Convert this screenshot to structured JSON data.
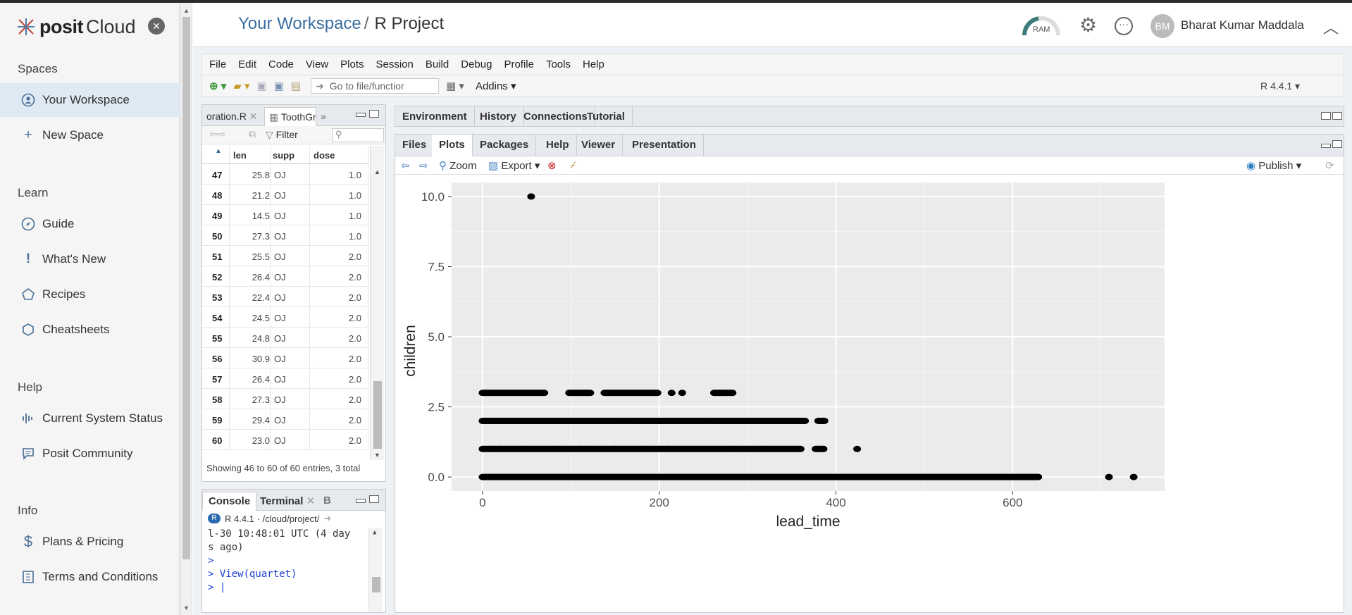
{
  "sidebar": {
    "logo_word1": "posit",
    "logo_word2": "Cloud",
    "close": "✕",
    "spaces_heading": "Spaces",
    "your_workspace": "Your Workspace",
    "new_space": "New Space",
    "learn_heading": "Learn",
    "guide": "Guide",
    "whats_new": "What's New",
    "recipes": "Recipes",
    "cheatsheets": "Cheatsheets",
    "help_heading": "Help",
    "system_status": "Current System Status",
    "community": "Posit Community",
    "info_heading": "Info",
    "plans": "Plans & Pricing",
    "terms": "Terms and Conditions"
  },
  "header": {
    "workspace": "Your Workspace",
    "separator": "/",
    "project": "R Project",
    "ram_label": "RAM",
    "avatar_initials": "BM",
    "user_name": "Bharat Kumar Maddala"
  },
  "menu": [
    "File",
    "Edit",
    "Code",
    "View",
    "Plots",
    "Session",
    "Build",
    "Debug",
    "Profile",
    "Tools",
    "Help"
  ],
  "toolbar": {
    "goto_placeholder": "Go to file/functior",
    "addins": "Addins",
    "r_version": "R 4.4.1"
  },
  "source": {
    "tab1": "oration.R",
    "tab2": "ToothGro",
    "filter": "Filter",
    "columns": [
      "len",
      "supp",
      "dose"
    ],
    "rows": [
      [
        "47",
        "25.8",
        "OJ",
        "1.0"
      ],
      [
        "48",
        "21.2",
        "OJ",
        "1.0"
      ],
      [
        "49",
        "14.5",
        "OJ",
        "1.0"
      ],
      [
        "50",
        "27.3",
        "OJ",
        "1.0"
      ],
      [
        "51",
        "25.5",
        "OJ",
        "2.0"
      ],
      [
        "52",
        "26.4",
        "OJ",
        "2.0"
      ],
      [
        "53",
        "22.4",
        "OJ",
        "2.0"
      ],
      [
        "54",
        "24.5",
        "OJ",
        "2.0"
      ],
      [
        "55",
        "24.8",
        "OJ",
        "2.0"
      ],
      [
        "56",
        "30.9",
        "OJ",
        "2.0"
      ],
      [
        "57",
        "26.4",
        "OJ",
        "2.0"
      ],
      [
        "58",
        "27.3",
        "OJ",
        "2.0"
      ],
      [
        "59",
        "29.4",
        "OJ",
        "2.0"
      ],
      [
        "60",
        "23.0",
        "OJ",
        "2.0"
      ]
    ],
    "entries": "Showing 46 to 60 of 60 entries, 3 total"
  },
  "console": {
    "tab_console": "Console",
    "tab_terminal": "Terminal",
    "tab_b": "B",
    "path": "R 4.4.1 · /cloud/project/",
    "line1": "l-30 10:48:01 UTC (4 day",
    "line2": "s ago)",
    "prompt": ">",
    "cmd": "> View(quartet)",
    "last": "> |"
  },
  "env_tabs": [
    "Environment",
    "History",
    "Connections",
    "Tutorial"
  ],
  "plot_tabs": [
    "Files",
    "Plots",
    "Packages",
    "Help",
    "Viewer",
    "Presentation"
  ],
  "plot_toolbar": {
    "zoom": "Zoom",
    "export": "Export",
    "publish": "Publish"
  },
  "colors": {
    "accent": "#3a6fa0",
    "active_sidebar": "#dfe9f3",
    "plot_bg": "#ebebeb"
  },
  "chart_data": {
    "type": "scatter",
    "title": "",
    "xlabel": "lead_time",
    "ylabel": "children",
    "xlim": [
      -35,
      772
    ],
    "ylim": [
      -0.5,
      10.5
    ],
    "x_ticks": [
      0,
      200,
      400,
      600
    ],
    "x_tick_labels": [
      "0",
      "200",
      "400",
      "600"
    ],
    "y_ticks": [
      0,
      2.5,
      5,
      7.5,
      10
    ],
    "y_tick_labels": [
      "0.0",
      "2.5",
      "5.0",
      "7.5",
      "10.0"
    ],
    "grid": true,
    "point_color": "#000000",
    "points": [
      [
        55,
        10
      ],
      [
        0,
        3
      ],
      [
        5,
        3
      ],
      [
        10,
        3
      ],
      [
        15,
        3
      ],
      [
        25,
        3
      ],
      [
        30,
        3
      ],
      [
        35,
        3
      ],
      [
        40,
        3
      ],
      [
        48,
        3
      ],
      [
        55,
        3
      ],
      [
        60,
        3
      ],
      [
        65,
        3
      ],
      [
        70,
        3
      ],
      [
        98,
        3
      ],
      [
        104,
        3
      ],
      [
        110,
        3
      ],
      [
        116,
        3
      ],
      [
        122,
        3
      ],
      [
        138,
        3
      ],
      [
        144,
        3
      ],
      [
        150,
        3
      ],
      [
        157,
        3
      ],
      [
        164,
        3
      ],
      [
        171,
        3
      ],
      [
        178,
        3
      ],
      [
        185,
        3
      ],
      [
        192,
        3
      ],
      [
        198,
        3
      ],
      [
        214,
        3
      ],
      [
        226,
        3
      ],
      [
        262,
        3
      ],
      [
        268,
        3
      ],
      [
        274,
        3
      ],
      [
        283,
        3
      ],
      [
        0,
        2
      ],
      [
        10,
        2
      ],
      [
        20,
        2
      ],
      [
        30,
        2
      ],
      [
        40,
        2
      ],
      [
        50,
        2
      ],
      [
        60,
        2
      ],
      [
        70,
        2
      ],
      [
        80,
        2
      ],
      [
        90,
        2
      ],
      [
        100,
        2
      ],
      [
        110,
        2
      ],
      [
        120,
        2
      ],
      [
        130,
        2
      ],
      [
        140,
        2
      ],
      [
        150,
        2
      ],
      [
        160,
        2
      ],
      [
        170,
        2
      ],
      [
        180,
        2
      ],
      [
        190,
        2
      ],
      [
        200,
        2
      ],
      [
        210,
        2
      ],
      [
        220,
        2
      ],
      [
        230,
        2
      ],
      [
        240,
        2
      ],
      [
        250,
        2
      ],
      [
        260,
        2
      ],
      [
        270,
        2
      ],
      [
        280,
        2
      ],
      [
        290,
        2
      ],
      [
        300,
        2
      ],
      [
        310,
        2
      ],
      [
        320,
        2
      ],
      [
        330,
        2
      ],
      [
        340,
        2
      ],
      [
        350,
        2
      ],
      [
        358,
        2
      ],
      [
        365,
        2
      ],
      [
        380,
        2
      ],
      [
        387,
        2
      ],
      [
        0,
        1
      ],
      [
        10,
        1
      ],
      [
        20,
        1
      ],
      [
        30,
        1
      ],
      [
        40,
        1
      ],
      [
        50,
        1
      ],
      [
        60,
        1
      ],
      [
        70,
        1
      ],
      [
        80,
        1
      ],
      [
        90,
        1
      ],
      [
        100,
        1
      ],
      [
        110,
        1
      ],
      [
        120,
        1
      ],
      [
        130,
        1
      ],
      [
        140,
        1
      ],
      [
        150,
        1
      ],
      [
        160,
        1
      ],
      [
        170,
        1
      ],
      [
        180,
        1
      ],
      [
        190,
        1
      ],
      [
        200,
        1
      ],
      [
        210,
        1
      ],
      [
        220,
        1
      ],
      [
        230,
        1
      ],
      [
        240,
        1
      ],
      [
        250,
        1
      ],
      [
        260,
        1
      ],
      [
        270,
        1
      ],
      [
        280,
        1
      ],
      [
        290,
        1
      ],
      [
        300,
        1
      ],
      [
        310,
        1
      ],
      [
        320,
        1
      ],
      [
        330,
        1
      ],
      [
        340,
        1
      ],
      [
        350,
        1
      ],
      [
        360,
        1
      ],
      [
        377,
        1
      ],
      [
        386,
        1
      ],
      [
        424,
        1
      ],
      [
        0,
        0
      ],
      [
        10,
        0
      ],
      [
        20,
        0
      ],
      [
        30,
        0
      ],
      [
        40,
        0
      ],
      [
        50,
        0
      ],
      [
        60,
        0
      ],
      [
        70,
        0
      ],
      [
        80,
        0
      ],
      [
        90,
        0
      ],
      [
        100,
        0
      ],
      [
        110,
        0
      ],
      [
        120,
        0
      ],
      [
        130,
        0
      ],
      [
        140,
        0
      ],
      [
        150,
        0
      ],
      [
        160,
        0
      ],
      [
        170,
        0
      ],
      [
        180,
        0
      ],
      [
        190,
        0
      ],
      [
        200,
        0
      ],
      [
        210,
        0
      ],
      [
        220,
        0
      ],
      [
        230,
        0
      ],
      [
        240,
        0
      ],
      [
        250,
        0
      ],
      [
        260,
        0
      ],
      [
        270,
        0
      ],
      [
        280,
        0
      ],
      [
        290,
        0
      ],
      [
        300,
        0
      ],
      [
        310,
        0
      ],
      [
        320,
        0
      ],
      [
        330,
        0
      ],
      [
        340,
        0
      ],
      [
        350,
        0
      ],
      [
        360,
        0
      ],
      [
        370,
        0
      ],
      [
        380,
        0
      ],
      [
        390,
        0
      ],
      [
        400,
        0
      ],
      [
        410,
        0
      ],
      [
        420,
        0
      ],
      [
        430,
        0
      ],
      [
        440,
        0
      ],
      [
        450,
        0
      ],
      [
        460,
        0
      ],
      [
        470,
        0
      ],
      [
        480,
        0
      ],
      [
        490,
        0
      ],
      [
        500,
        0
      ],
      [
        510,
        0
      ],
      [
        520,
        0
      ],
      [
        530,
        0
      ],
      [
        540,
        0
      ],
      [
        550,
        0
      ],
      [
        560,
        0
      ],
      [
        570,
        0
      ],
      [
        580,
        0
      ],
      [
        590,
        0
      ],
      [
        600,
        0
      ],
      [
        610,
        0
      ],
      [
        620,
        0
      ],
      [
        629,
        0
      ],
      [
        709,
        0
      ],
      [
        737,
        0
      ]
    ]
  }
}
